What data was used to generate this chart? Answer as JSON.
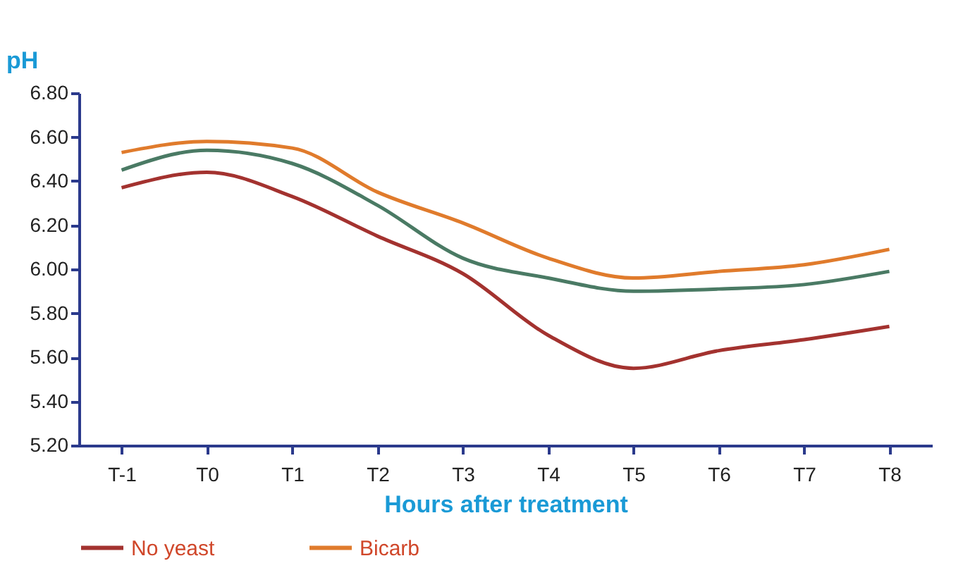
{
  "chart_data": {
    "type": "line",
    "xlabel": "Hours after treatment",
    "ylabel": "pH",
    "categories": [
      "T-1",
      "T0",
      "T1",
      "T2",
      "T3",
      "T4",
      "T5",
      "T6",
      "T7",
      "T8"
    ],
    "ylim": [
      5.2,
      6.8
    ],
    "yticks": [
      {
        "value": 5.2,
        "label": "5.20"
      },
      {
        "value": 5.4,
        "label": "5.40"
      },
      {
        "value": 5.6,
        "label": "5.60"
      },
      {
        "value": 5.8,
        "label": "5.80"
      },
      {
        "value": 6.0,
        "label": "6.00"
      },
      {
        "value": 6.2,
        "label": "6.20"
      },
      {
        "value": 6.4,
        "label": "6.40"
      },
      {
        "value": 6.6,
        "label": "6.60"
      },
      {
        "value": 6.8,
        "label": "6.80"
      }
    ],
    "grid": false,
    "legend": "bottom",
    "line_style": "solid",
    "series": [
      {
        "name": "No yeast",
        "color": "#a3322f",
        "values": [
          6.37,
          6.44,
          6.33,
          6.15,
          5.98,
          5.7,
          5.55,
          5.63,
          5.68,
          5.74
        ]
      },
      {
        "name": "Bicarb",
        "color": "#e07b2c",
        "values": [
          6.53,
          6.58,
          6.55,
          6.35,
          6.21,
          6.05,
          5.96,
          5.99,
          6.02,
          6.09
        ]
      },
      {
        "color": "#4a7a64",
        "values": [
          6.45,
          6.54,
          6.48,
          6.29,
          6.05,
          5.96,
          5.9,
          5.91,
          5.93,
          5.99
        ]
      }
    ]
  }
}
